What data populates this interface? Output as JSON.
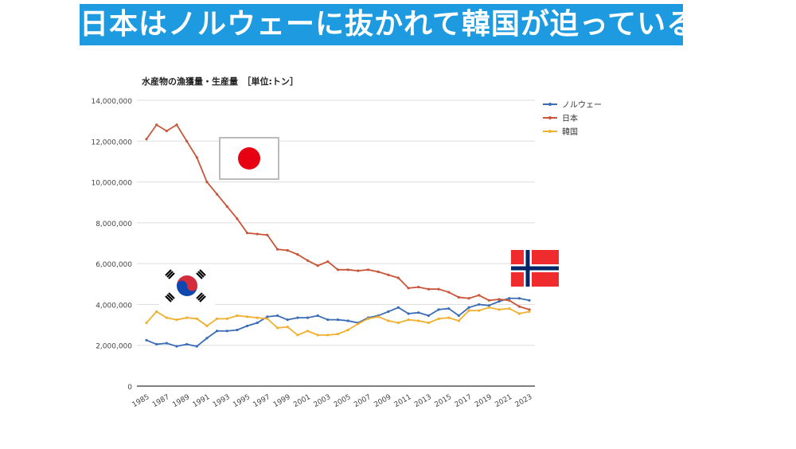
{
  "banner": "日本はノルウェーに抜かれて韓国が迫っている",
  "colors": {
    "banner": "#1e9be0",
    "norway": "#3b6db5",
    "japan": "#c9553a",
    "korea": "#f0b030"
  },
  "flags": [
    "japan-flag",
    "korea-flag",
    "norway-flag"
  ],
  "chart_data": {
    "type": "line",
    "title": "水産物の漁獲量・生産量　［単位:トン］",
    "xlabel": "",
    "ylabel": "",
    "ylim": [
      0,
      14000000
    ],
    "yticks": [
      0,
      2000000,
      4000000,
      6000000,
      8000000,
      10000000,
      12000000,
      14000000
    ],
    "ytick_labels": [
      "0",
      "2,000,000",
      "4,000,000",
      "6,000,000",
      "8,000,000",
      "10,000,000",
      "12,000,000",
      "14,000,000"
    ],
    "grid": true,
    "legend": "top-right",
    "x": [
      1985,
      1986,
      1987,
      1988,
      1989,
      1990,
      1991,
      1992,
      1993,
      1994,
      1995,
      1996,
      1997,
      1998,
      1999,
      2000,
      2001,
      2002,
      2003,
      2004,
      2005,
      2006,
      2007,
      2008,
      2009,
      2010,
      2011,
      2012,
      2013,
      2014,
      2015,
      2016,
      2017,
      2018,
      2019,
      2020,
      2021,
      2022,
      2023
    ],
    "xtick_labels": [
      "1985",
      "1987",
      "1989",
      "1991",
      "1993",
      "1995",
      "1997",
      "1999",
      "2001",
      "2003",
      "2005",
      "2007",
      "2009",
      "2011",
      "2013",
      "2015",
      "2017",
      "2019",
      "2021",
      "2023"
    ],
    "series": [
      {
        "name": "ノルウェー",
        "color": "#3b6db5",
        "values": [
          2250000,
          2050000,
          2100000,
          1950000,
          2050000,
          1950000,
          2350000,
          2700000,
          2700000,
          2750000,
          2950000,
          3100000,
          3400000,
          3450000,
          3250000,
          3350000,
          3350000,
          3450000,
          3250000,
          3250000,
          3200000,
          3100000,
          3350000,
          3450000,
          3650000,
          3850000,
          3550000,
          3600000,
          3450000,
          3750000,
          3800000,
          3450000,
          3850000,
          4000000,
          3950000,
          4150000,
          4300000,
          4300000,
          4200000
        ]
      },
      {
        "name": "日本",
        "color": "#c9553a",
        "values": [
          12100000,
          12800000,
          12500000,
          12800000,
          12000000,
          11200000,
          10000000,
          9400000,
          8800000,
          8200000,
          7500000,
          7450000,
          7400000,
          6700000,
          6650000,
          6450000,
          6150000,
          5900000,
          6100000,
          5700000,
          5700000,
          5650000,
          5700000,
          5600000,
          5450000,
          5300000,
          4800000,
          4850000,
          4750000,
          4750000,
          4600000,
          4350000,
          4300000,
          4450000,
          4200000,
          4250000,
          4200000,
          3900000,
          3750000
        ]
      },
      {
        "name": "韓国",
        "color": "#f0b030",
        "values": [
          3100000,
          3650000,
          3350000,
          3250000,
          3350000,
          3300000,
          2950000,
          3300000,
          3300000,
          3450000,
          3400000,
          3350000,
          3300000,
          2850000,
          2900000,
          2500000,
          2700000,
          2500000,
          2500000,
          2550000,
          2750000,
          3050000,
          3300000,
          3400000,
          3200000,
          3100000,
          3250000,
          3200000,
          3100000,
          3300000,
          3350000,
          3200000,
          3700000,
          3700000,
          3850000,
          3750000,
          3800000,
          3550000,
          3650000
        ]
      }
    ]
  }
}
